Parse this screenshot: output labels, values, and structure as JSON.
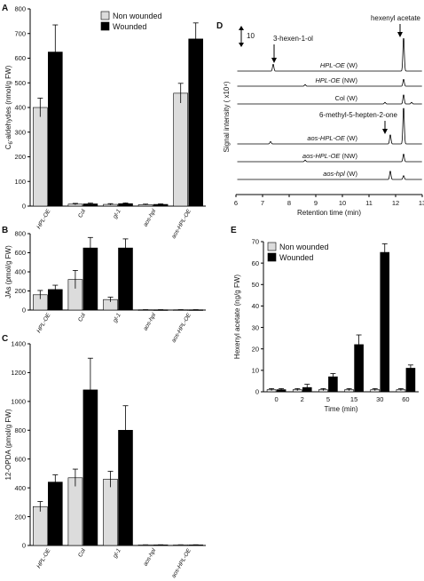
{
  "colors": {
    "nonwounded": "#dcdcdc",
    "wounded": "#000000",
    "axis": "#000000"
  },
  "panel_labels": {
    "A": "A",
    "B": "B",
    "C": "C",
    "D": "D",
    "E": "E"
  },
  "chart_data": [
    {
      "id": "A",
      "type": "bar",
      "categories": [
        "HPL-OE",
        "Col",
        "gl-1",
        "aos-hpl",
        "aos-HPL-OE"
      ],
      "ylabel": "C6-aldehydes (nmol/g FW)",
      "ylim": [
        0,
        800
      ],
      "yticks": [
        0,
        100,
        200,
        300,
        400,
        500,
        600,
        700,
        800
      ],
      "legend": [
        "Non wounded",
        "Wounded"
      ],
      "legend_position": "top-left",
      "series": [
        {
          "name": "Non wounded",
          "values": [
            400,
            8,
            7,
            6,
            458
          ],
          "errors": [
            38,
            3,
            3,
            2,
            40
          ]
        },
        {
          "name": "Wounded",
          "values": [
            625,
            9,
            10,
            7,
            678
          ],
          "errors": [
            110,
            3,
            3,
            2,
            65
          ]
        }
      ]
    },
    {
      "id": "B",
      "type": "bar",
      "categories": [
        "HPL-OE",
        "Col",
        "gl-1",
        "aos-hpl",
        "aos-HPL-OE"
      ],
      "ylabel": "JAs (pmol/g FW)",
      "ylim": [
        0,
        800
      ],
      "yticks": [
        0,
        200,
        400,
        600,
        800
      ],
      "series": [
        {
          "name": "Non wounded",
          "values": [
            160,
            320,
            110,
            3,
            3
          ],
          "errors": [
            45,
            95,
            25,
            1,
            1
          ]
        },
        {
          "name": "Wounded",
          "values": [
            215,
            650,
            650,
            3,
            3
          ],
          "errors": [
            45,
            110,
            95,
            1,
            1
          ]
        }
      ]
    },
    {
      "id": "C",
      "type": "bar",
      "categories": [
        "HPL-OE",
        "Col",
        "gl-1",
        "aos-hpl",
        "aos-HPL-OE"
      ],
      "ylabel": "12-OPDA (pmol/g FW)",
      "ylim": [
        0,
        1400
      ],
      "yticks": [
        0,
        200,
        400,
        600,
        800,
        1000,
        1200,
        1400
      ],
      "series": [
        {
          "name": "Non wounded",
          "values": [
            270,
            470,
            460,
            4,
            4
          ],
          "errors": [
            35,
            60,
            55,
            1,
            1
          ]
        },
        {
          "name": "Wounded",
          "values": [
            440,
            1080,
            800,
            4,
            4
          ],
          "errors": [
            50,
            220,
            170,
            1,
            1
          ]
        }
      ]
    },
    {
      "id": "D",
      "type": "line",
      "xlabel": "Retention time (min)",
      "ylabel": "Signal intensity  ( x10⁴)",
      "xlim": [
        6,
        13
      ],
      "xticks": [
        6,
        7,
        8,
        9,
        10,
        11,
        12,
        13
      ],
      "scale_bar": "10",
      "annotations": [
        "3-hexen-1-ol",
        "hexenyl acetate",
        "6-methyl-5-hepten-2-one"
      ],
      "series": [
        {
          "name": "HPL-OE (W)",
          "peaks": [
            [
              7.4,
              9
            ],
            [
              12.3,
              44
            ]
          ]
        },
        {
          "name": "HPL-OE (NW)",
          "peaks": [
            [
              8.6,
              2
            ],
            [
              12.3,
              9
            ]
          ]
        },
        {
          "name": "Col (W)",
          "peaks": [
            [
              11.6,
              2
            ],
            [
              12.3,
              12
            ],
            [
              12.6,
              2
            ]
          ]
        },
        {
          "name": "aos-HPL-OE (W)",
          "peaks": [
            [
              7.3,
              3
            ],
            [
              11.8,
              12
            ],
            [
              12.3,
              48
            ]
          ]
        },
        {
          "name": "aos-HPL-OE (NW)",
          "peaks": [
            [
              8.6,
              2
            ],
            [
              12.3,
              10
            ]
          ]
        },
        {
          "name": "aos-hpl (W)",
          "peaks": [
            [
              11.8,
              11
            ],
            [
              12.3,
              5
            ]
          ]
        }
      ]
    },
    {
      "id": "E",
      "type": "bar",
      "categories": [
        "0",
        "2",
        "5",
        "15",
        "30",
        "60"
      ],
      "xlabel": "Time (min)",
      "ylabel": "Hexenyl acetate (ng/g FW)",
      "ylim": [
        0,
        70
      ],
      "yticks": [
        0,
        10,
        20,
        30,
        40,
        50,
        60,
        70
      ],
      "legend": [
        "Non wounded",
        "Wounded"
      ],
      "legend_position": "top-left",
      "series": [
        {
          "name": "Non wounded",
          "values": [
            1,
            1,
            1,
            1,
            1,
            1
          ],
          "errors": [
            0.5,
            0.5,
            0.5,
            0.5,
            0.5,
            0.5
          ]
        },
        {
          "name": "Wounded",
          "values": [
            1,
            2,
            7,
            22,
            65,
            11
          ],
          "errors": [
            0.5,
            1.5,
            1.5,
            4.5,
            4,
            1.5
          ]
        }
      ]
    }
  ]
}
